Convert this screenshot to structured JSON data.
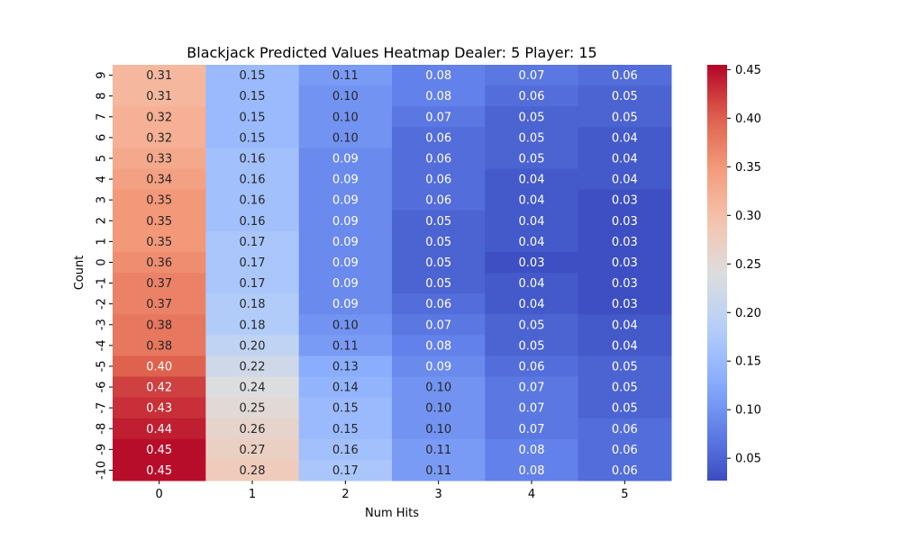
{
  "chart_data": {
    "type": "heatmap",
    "title": "Blackjack Predicted Values Heatmap Dealer: 5 Player: 15",
    "xlabel": "Num Hits",
    "ylabel": "Count",
    "x_categories": [
      "0",
      "1",
      "2",
      "3",
      "4",
      "5"
    ],
    "y_categories": [
      "9",
      "8",
      "7",
      "6",
      "5",
      "4",
      "3",
      "2",
      "1",
      "0",
      "-1",
      "-2",
      "-3",
      "-4",
      "-5",
      "-6",
      "-7",
      "-8",
      "-9",
      "-10"
    ],
    "values": [
      [
        0.31,
        0.15,
        0.11,
        0.08,
        0.07,
        0.06
      ],
      [
        0.31,
        0.15,
        0.1,
        0.08,
        0.06,
        0.05
      ],
      [
        0.32,
        0.15,
        0.1,
        0.07,
        0.05,
        0.05
      ],
      [
        0.32,
        0.15,
        0.1,
        0.06,
        0.05,
        0.04
      ],
      [
        0.33,
        0.16,
        0.09,
        0.06,
        0.05,
        0.04
      ],
      [
        0.34,
        0.16,
        0.09,
        0.06,
        0.04,
        0.04
      ],
      [
        0.35,
        0.16,
        0.09,
        0.06,
        0.04,
        0.03
      ],
      [
        0.35,
        0.16,
        0.09,
        0.05,
        0.04,
        0.03
      ],
      [
        0.35,
        0.17,
        0.09,
        0.05,
        0.04,
        0.03
      ],
      [
        0.36,
        0.17,
        0.09,
        0.05,
        0.03,
        0.03
      ],
      [
        0.37,
        0.17,
        0.09,
        0.05,
        0.04,
        0.03
      ],
      [
        0.37,
        0.18,
        0.09,
        0.06,
        0.04,
        0.03
      ],
      [
        0.38,
        0.18,
        0.1,
        0.07,
        0.05,
        0.04
      ],
      [
        0.38,
        0.2,
        0.11,
        0.08,
        0.05,
        0.04
      ],
      [
        0.4,
        0.22,
        0.13,
        0.09,
        0.06,
        0.05
      ],
      [
        0.42,
        0.24,
        0.14,
        0.1,
        0.07,
        0.05
      ],
      [
        0.43,
        0.25,
        0.15,
        0.1,
        0.07,
        0.05
      ],
      [
        0.44,
        0.26,
        0.15,
        0.1,
        0.07,
        0.06
      ],
      [
        0.45,
        0.27,
        0.16,
        0.11,
        0.08,
        0.06
      ],
      [
        0.45,
        0.28,
        0.17,
        0.11,
        0.08,
        0.06
      ]
    ],
    "colormap": "coolwarm",
    "vmin": 0.027,
    "vmax": 0.455,
    "colorbar_ticks": [
      "0.05",
      "0.10",
      "0.15",
      "0.20",
      "0.25",
      "0.30",
      "0.35",
      "0.40",
      "0.45"
    ],
    "colorbar_tick_values": [
      0.05,
      0.1,
      0.15,
      0.2,
      0.25,
      0.3,
      0.35,
      0.4,
      0.45
    ],
    "grid": false
  }
}
